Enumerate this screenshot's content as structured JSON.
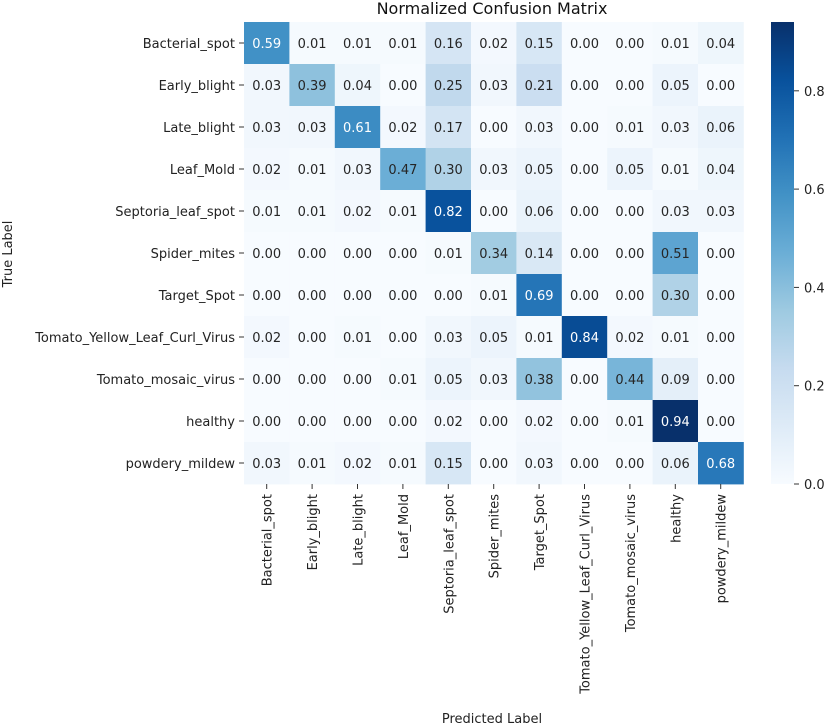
{
  "chart_data": {
    "type": "heatmap",
    "title": "Normalized Confusion Matrix",
    "xlabel": "Predicted Label",
    "ylabel": "True Label",
    "colormap": "Blues",
    "color_low": "#f7fbff",
    "color_high": "#08306b",
    "vmin": 0.0,
    "vmax": 0.94,
    "colorbar_ticks": [
      0.0,
      0.2,
      0.4,
      0.6,
      0.8
    ],
    "colorbar_tick_labels": [
      "0.0",
      "0.2",
      "0.4",
      "0.6",
      "0.8"
    ],
    "rows": [
      "Bacterial_spot",
      "Early_blight",
      "Late_blight",
      "Leaf_Mold",
      "Septoria_leaf_spot",
      "Spider_mites",
      "Target_Spot",
      "Tomato_Yellow_Leaf_Curl_Virus",
      "Tomato_mosaic_virus",
      "healthy",
      "powdery_mildew"
    ],
    "columns": [
      "Bacterial_spot",
      "Early_blight",
      "Late_blight",
      "Leaf_Mold",
      "Septoria_leaf_spot",
      "Spider_mites",
      "Target_Spot",
      "Tomato_Yellow_Leaf_Curl_Virus",
      "Tomato_mosaic_virus",
      "healthy",
      "powdery_mildew"
    ],
    "values": [
      [
        0.59,
        0.01,
        0.01,
        0.01,
        0.16,
        0.02,
        0.15,
        0.0,
        0.0,
        0.01,
        0.04
      ],
      [
        0.03,
        0.39,
        0.04,
        0.0,
        0.25,
        0.03,
        0.21,
        0.0,
        0.0,
        0.05,
        0.0
      ],
      [
        0.03,
        0.03,
        0.61,
        0.02,
        0.17,
        0.0,
        0.03,
        0.0,
        0.01,
        0.03,
        0.06
      ],
      [
        0.02,
        0.01,
        0.03,
        0.47,
        0.3,
        0.03,
        0.05,
        0.0,
        0.05,
        0.01,
        0.04
      ],
      [
        0.01,
        0.01,
        0.02,
        0.01,
        0.82,
        0.0,
        0.06,
        0.0,
        0.0,
        0.03,
        0.03
      ],
      [
        0.0,
        0.0,
        0.0,
        0.0,
        0.01,
        0.34,
        0.14,
        0.0,
        0.0,
        0.51,
        0.0
      ],
      [
        0.0,
        0.0,
        0.0,
        0.0,
        0.0,
        0.01,
        0.69,
        0.0,
        0.0,
        0.3,
        0.0
      ],
      [
        0.02,
        0.0,
        0.01,
        0.0,
        0.03,
        0.05,
        0.01,
        0.84,
        0.02,
        0.01,
        0.0
      ],
      [
        0.0,
        0.0,
        0.0,
        0.01,
        0.05,
        0.03,
        0.38,
        0.0,
        0.44,
        0.09,
        0.0
      ],
      [
        0.0,
        0.0,
        0.0,
        0.0,
        0.02,
        0.0,
        0.02,
        0.0,
        0.01,
        0.94,
        0.0
      ],
      [
        0.03,
        0.01,
        0.02,
        0.01,
        0.15,
        0.0,
        0.03,
        0.0,
        0.0,
        0.06,
        0.68
      ]
    ]
  }
}
